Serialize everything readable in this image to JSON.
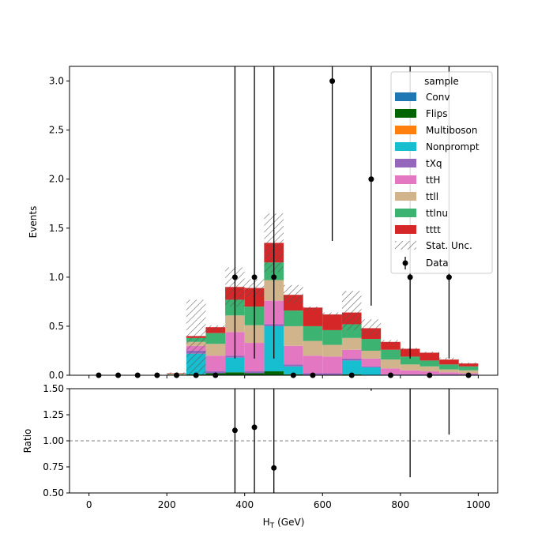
{
  "chart_data": {
    "type": "bar",
    "stacked": true,
    "xlabel": "H",
    "xlabel_sub": "T",
    "xlabel_unit": "(GeV)",
    "ylabel_top": "Events",
    "ylabel_bottom": "Ratio",
    "xlim": [
      -50,
      1050
    ],
    "ylim_top": [
      0,
      3.15
    ],
    "ylim_bottom": [
      0.5,
      1.5
    ],
    "x_ticks": [
      0,
      200,
      400,
      600,
      800,
      1000
    ],
    "y_ticks_top": [
      "0.0",
      "0.5",
      "1.0",
      "1.5",
      "2.0",
      "2.5",
      "3.0"
    ],
    "y_ticks_bottom": [
      "0.50",
      "0.75",
      "1.00",
      "1.25",
      "1.50"
    ],
    "ratio_reference": 1.0,
    "bin_edges": [
      0,
      50,
      100,
      150,
      200,
      250,
      300,
      350,
      400,
      450,
      500,
      550,
      600,
      650,
      700,
      750,
      800,
      850,
      900,
      950,
      1000
    ],
    "legend": {
      "title": "sample",
      "placement": "top-right",
      "uncertainty_label": "Stat. Unc.",
      "data_label": "Data"
    },
    "series": [
      {
        "name": "Conv",
        "color": "#1f77b4",
        "values": [
          0,
          0,
          0,
          0,
          0,
          0,
          0,
          0,
          0,
          0,
          0,
          0,
          0,
          0,
          0,
          0,
          0,
          0,
          0,
          0
        ]
      },
      {
        "name": "Flips",
        "color": "#006400",
        "values": [
          0,
          0,
          0,
          0,
          0,
          0.01,
          0.02,
          0.03,
          0.02,
          0.04,
          0.01,
          0,
          0,
          0.01,
          0,
          0,
          0,
          0,
          0,
          0
        ]
      },
      {
        "name": "Multiboson",
        "color": "#ff7f0e",
        "values": [
          0,
          0,
          0,
          0,
          0,
          0,
          0,
          0,
          0,
          0,
          0,
          0,
          0,
          0,
          0,
          0,
          0,
          0,
          0,
          0
        ]
      },
      {
        "name": "Nonprompt",
        "color": "#17becf",
        "values": [
          0,
          0,
          0,
          0,
          0,
          0.21,
          0,
          0.15,
          0,
          0.46,
          0.08,
          0,
          0,
          0.14,
          0.08,
          0,
          0,
          0,
          0,
          0
        ]
      },
      {
        "name": "tXq",
        "color": "#9467bd",
        "values": [
          0,
          0,
          0,
          0,
          0,
          0.03,
          0.02,
          0.02,
          0.02,
          0.02,
          0.02,
          0.02,
          0.02,
          0.02,
          0.01,
          0.01,
          0.01,
          0.01,
          0.01,
          0.01
        ]
      },
      {
        "name": "ttH",
        "color": "#e377c2",
        "values": [
          0,
          0,
          0,
          0,
          0.005,
          0.05,
          0.16,
          0.24,
          0.29,
          0.24,
          0.19,
          0.18,
          0.17,
          0.09,
          0.08,
          0.06,
          0.04,
          0.03,
          0.02,
          0.01
        ]
      },
      {
        "name": "ttll",
        "color": "#d2b48c",
        "values": [
          0,
          0,
          0,
          0,
          0.005,
          0.04,
          0.12,
          0.17,
          0.18,
          0.21,
          0.2,
          0.15,
          0.12,
          0.12,
          0.08,
          0.09,
          0.06,
          0.05,
          0.03,
          0.03
        ]
      },
      {
        "name": "ttlnu",
        "color": "#3cb371",
        "values": [
          0,
          0,
          0,
          0,
          0.005,
          0.04,
          0.11,
          0.16,
          0.19,
          0.18,
          0.16,
          0.15,
          0.15,
          0.14,
          0.12,
          0.1,
          0.08,
          0.06,
          0.05,
          0.04
        ]
      },
      {
        "name": "tttt",
        "color": "#d62728",
        "values": [
          0,
          0,
          0,
          0,
          0.005,
          0.02,
          0.06,
          0.13,
          0.19,
          0.2,
          0.16,
          0.19,
          0.16,
          0.12,
          0.11,
          0.08,
          0.08,
          0.08,
          0.05,
          0.03
        ]
      }
    ],
    "stat_unc": [
      {
        "bin": 4,
        "low": 0.005,
        "high": 0.03
      },
      {
        "bin": 5,
        "low": 0.0,
        "high": 0.77
      },
      {
        "bin": 6,
        "low": 0.45,
        "high": 0.51
      },
      {
        "bin": 7,
        "low": 0.7,
        "high": 1.1
      },
      {
        "bin": 8,
        "low": 0.8,
        "high": 0.98
      },
      {
        "bin": 9,
        "low": 1.05,
        "high": 1.65
      },
      {
        "bin": 10,
        "low": 0.73,
        "high": 0.92
      },
      {
        "bin": 11,
        "low": 0.66,
        "high": 0.7
      },
      {
        "bin": 12,
        "low": 0.6,
        "high": 0.64
      },
      {
        "bin": 13,
        "low": 0.46,
        "high": 0.86
      },
      {
        "bin": 14,
        "low": 0.4,
        "high": 0.57
      },
      {
        "bin": 15,
        "low": 0.32,
        "high": 0.36
      },
      {
        "bin": 16,
        "low": 0.26,
        "high": 0.28
      },
      {
        "bin": 17,
        "low": 0.22,
        "high": 0.24
      },
      {
        "bin": 18,
        "low": 0.16,
        "high": 0.18
      },
      {
        "bin": 19,
        "low": 0.11,
        "high": 0.13
      }
    ],
    "data": {
      "x": [
        25,
        75,
        125,
        175,
        225,
        275,
        325,
        375,
        425,
        475,
        525,
        575,
        625,
        675,
        725,
        775,
        825,
        875,
        925,
        975
      ],
      "y": [
        0,
        0,
        0,
        0,
        0,
        0,
        0,
        1,
        1,
        1,
        0,
        0,
        3,
        0,
        2,
        0,
        1,
        0,
        1,
        0
      ],
      "err_low": [
        0,
        0,
        0,
        0,
        0,
        0,
        0,
        0.83,
        0.83,
        0.83,
        0,
        0,
        1.63,
        0,
        1.29,
        0,
        0.83,
        0,
        0.83,
        0
      ],
      "err_high": [
        0,
        0,
        0,
        0,
        0,
        0,
        0,
        2.3,
        2.3,
        2.3,
        0,
        0,
        2.92,
        0,
        2.63,
        0,
        2.3,
        0,
        2.3,
        0
      ]
    },
    "ratio": {
      "points": [
        {
          "x": 375,
          "y": 1.1
        },
        {
          "x": 425,
          "y": 1.13
        },
        {
          "x": 475,
          "y": 0.74
        }
      ],
      "error_bars": [
        {
          "x": 375,
          "low": 0.5,
          "high": 1.5
        },
        {
          "x": 425,
          "low": 0.5,
          "high": 1.5
        },
        {
          "x": 475,
          "low": 0.5,
          "high": 1.5
        },
        {
          "x": 725,
          "low": 1.48,
          "high": 1.5
        },
        {
          "x": 825,
          "low": 0.65,
          "high": 1.5
        },
        {
          "x": 925,
          "low": 1.06,
          "high": 1.5
        }
      ]
    }
  }
}
